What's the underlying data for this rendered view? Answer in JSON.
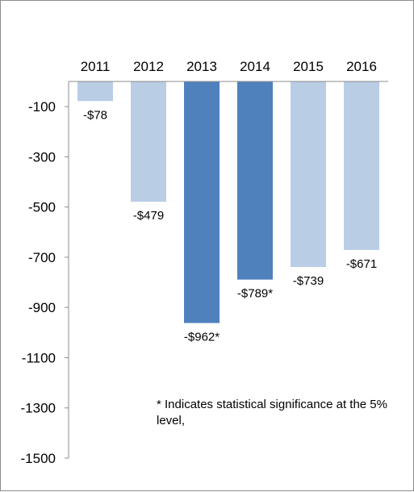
{
  "chart_data": {
    "type": "bar",
    "title": "",
    "xlabel": "",
    "ylabel": "",
    "categories": [
      "2011",
      "2012",
      "2013",
      "2014",
      "2015",
      "2016"
    ],
    "values": [
      -78,
      -479,
      -962,
      -789,
      -739,
      -671
    ],
    "data_labels": [
      "-$78",
      "-$479",
      "-$962*",
      "-$789*",
      "-$739",
      "-$671"
    ],
    "significant": [
      false,
      false,
      true,
      true,
      false,
      false
    ],
    "ylim": [
      -1500,
      0
    ],
    "yticks": [
      -100,
      -300,
      -500,
      -700,
      -900,
      -1100,
      -1300,
      -1500
    ],
    "x_axis_position": "top",
    "grid": false,
    "colors": {
      "normal": "#b9cde5",
      "significant": "#4f81bd",
      "axis": "#8c8c8c"
    }
  },
  "footnote": "* Indicates statistical significance at the 5% level,"
}
